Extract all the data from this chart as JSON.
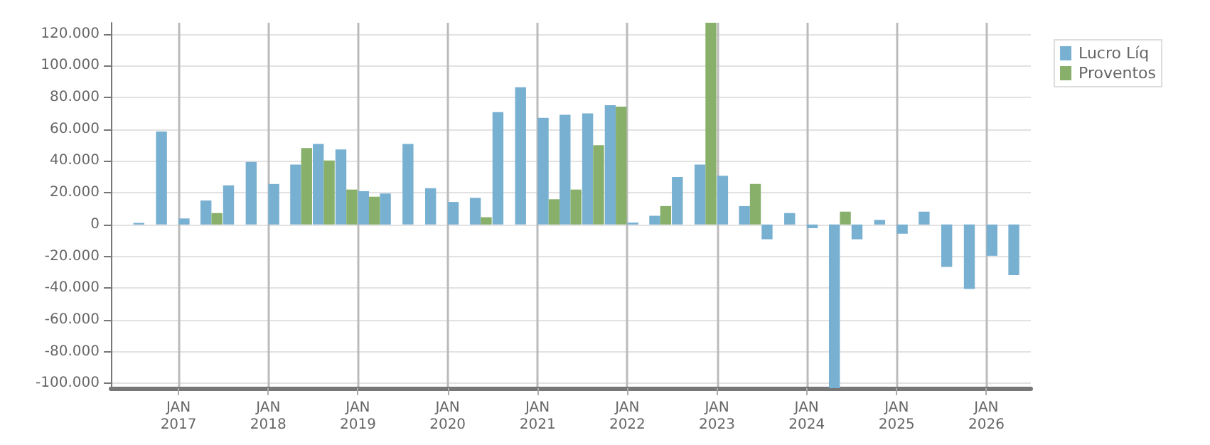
{
  "chart_data": {
    "type": "bar",
    "x": [
      "2016-08-15",
      "2016-11-15",
      "2017-02-15",
      "2017-05-15",
      "2017-08-15",
      "2017-11-15",
      "2018-02-15",
      "2018-05-15",
      "2018-08-15",
      "2018-11-15",
      "2019-02-15",
      "2019-05-15",
      "2019-08-15",
      "2019-11-15",
      "2020-02-15",
      "2020-05-15",
      "2020-08-15",
      "2020-11-15",
      "2021-02-15",
      "2021-05-15",
      "2021-08-15",
      "2021-11-15",
      "2022-02-15",
      "2022-05-15",
      "2022-08-15",
      "2022-11-15",
      "2023-02-15",
      "2023-05-15",
      "2023-08-15",
      "2023-11-15",
      "2024-02-15",
      "2024-05-15",
      "2024-08-15",
      "2024-11-15",
      "2025-02-15",
      "2025-05-15",
      "2025-08-15",
      "2025-11-15",
      "2026-02-15",
      "2026-05-15"
    ],
    "series": [
      {
        "name": "Lucro Líq",
        "color": "#78b0d2",
        "values": [
          1000,
          58500,
          3800,
          15100,
          24600,
          39400,
          25500,
          37700,
          50700,
          47200,
          21000,
          19500,
          50700,
          22900,
          14200,
          16800,
          70700,
          86400,
          67200,
          69000,
          69900,
          75100,
          1200,
          5500,
          29900,
          37700,
          30700,
          11600,
          -9300,
          7200,
          -2300,
          -103000,
          -9300,
          2900,
          -5800,
          8100,
          -26700,
          -40600,
          -19700,
          -31900
        ]
      },
      {
        "name": "Proventos",
        "color": "#88b06a",
        "values": [
          0,
          0,
          0,
          7200,
          0,
          0,
          0,
          48100,
          40300,
          22000,
          17500,
          0,
          0,
          0,
          0,
          4600,
          0,
          0,
          15900,
          22000,
          49900,
          74200,
          0,
          11600,
          0,
          127000,
          0,
          25500,
          0,
          0,
          0,
          8100,
          0,
          0,
          0,
          0,
          0,
          0,
          0,
          0
        ]
      }
    ],
    "xlim": [
      "2016-04-01",
      "2026-07-01"
    ],
    "xticks": [
      {
        "value": "2017-01-01",
        "label": "JAN\n2017"
      },
      {
        "value": "2018-01-01",
        "label": "JAN\n2018"
      },
      {
        "value": "2019-01-01",
        "label": "JAN\n2019"
      },
      {
        "value": "2020-01-01",
        "label": "JAN\n2020"
      },
      {
        "value": "2021-01-01",
        "label": "JAN\n2021"
      },
      {
        "value": "2022-01-01",
        "label": "JAN\n2022"
      },
      {
        "value": "2023-01-01",
        "label": "JAN\n2023"
      },
      {
        "value": "2024-01-01",
        "label": "JAN\n2024"
      },
      {
        "value": "2025-01-01",
        "label": "JAN\n2025"
      },
      {
        "value": "2026-01-01",
        "label": "JAN\n2026"
      }
    ],
    "ylim": [
      -103000,
      127000
    ],
    "yticks": [
      {
        "value": -100000,
        "label": "-100.000"
      },
      {
        "value": -80000,
        "label": "-80.000"
      },
      {
        "value": -60000,
        "label": "-60.000"
      },
      {
        "value": -40000,
        "label": "-40.000"
      },
      {
        "value": -20000,
        "label": "-20.000"
      },
      {
        "value": 0,
        "label": "0"
      },
      {
        "value": 20000,
        "label": "20.000"
      },
      {
        "value": 40000,
        "label": "40.000"
      },
      {
        "value": 60000,
        "label": "60.000"
      },
      {
        "value": 80000,
        "label": "80.000"
      },
      {
        "value": 100000,
        "label": "100.000"
      },
      {
        "value": 120000,
        "label": "120.000"
      }
    ],
    "grid": true,
    "legend": "top right"
  }
}
